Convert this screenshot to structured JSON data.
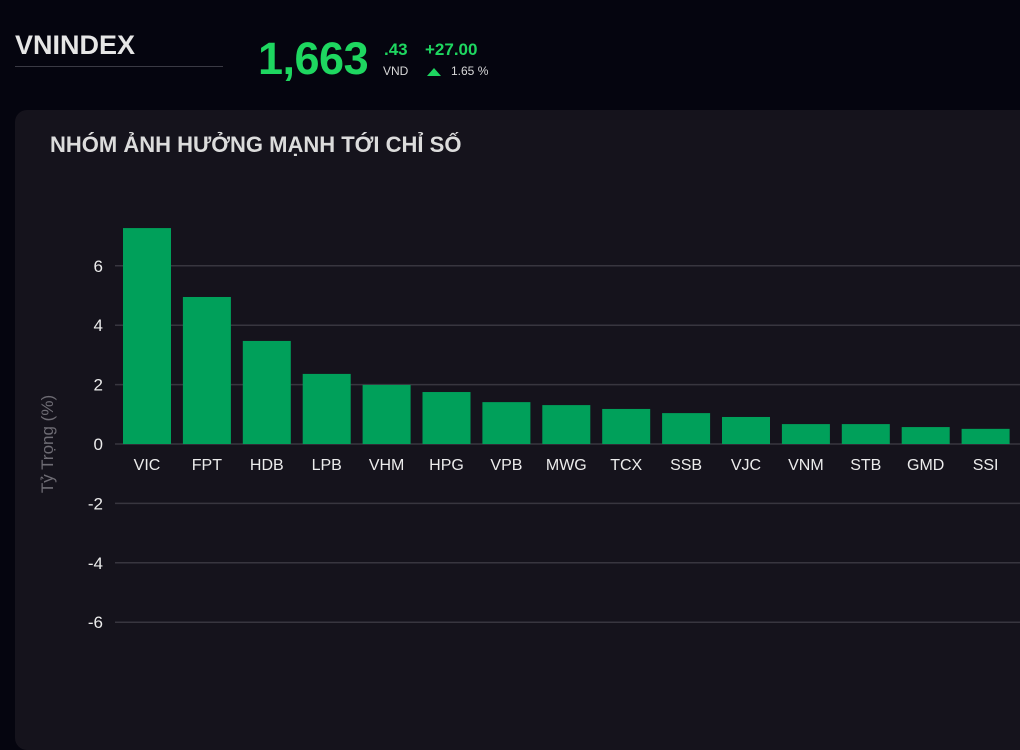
{
  "header": {
    "index_name": "VNINDEX",
    "price_int": "1,663",
    "price_dec": ".43",
    "currency": "VND",
    "change": "+27.00",
    "change_pct": "1.65 %",
    "trend": "up",
    "accent": "#1ed760"
  },
  "panel": {
    "title": "NHÓM ẢNH HƯỞNG MẠNH TỚI CHỈ SỐ"
  },
  "chart_data": {
    "type": "bar",
    "title": "",
    "xlabel": "",
    "ylabel": "Tỷ Trọng (%)",
    "ylim": [
      -7.5,
      7.5
    ],
    "yticks": [
      "6",
      "4",
      "2",
      "0",
      "-2",
      "-4",
      "-6"
    ],
    "ytick_values": [
      6,
      4,
      2,
      0,
      -2,
      -4,
      -6
    ],
    "grid": true,
    "bar_color": "#00a05a",
    "categories": [
      "VIC",
      "FPT",
      "HDB",
      "LPB",
      "VHM",
      "HPG",
      "VPB",
      "MWG",
      "TCX",
      "SSB",
      "VJC",
      "VNM",
      "STB",
      "GMD",
      "SSI"
    ],
    "values": [
      7.27,
      4.95,
      3.47,
      2.36,
      1.99,
      1.75,
      1.41,
      1.31,
      1.18,
      1.04,
      0.91,
      0.67,
      0.67,
      0.57,
      0.51
    ]
  }
}
